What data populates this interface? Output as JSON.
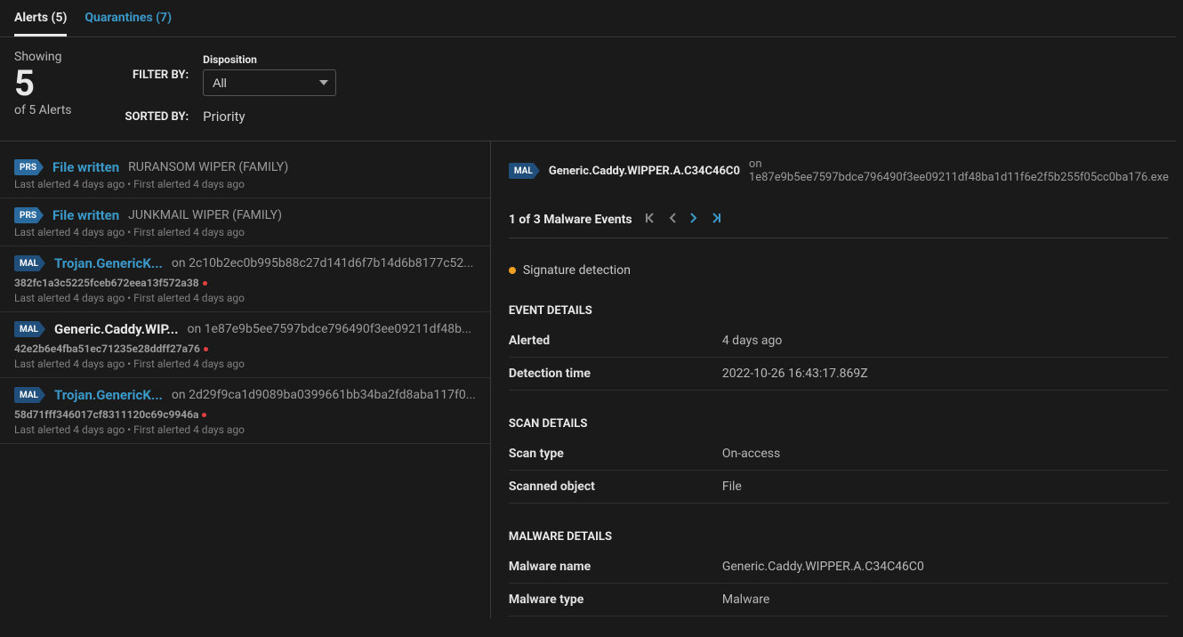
{
  "tabs": {
    "alerts": "Alerts (5)",
    "quarantines": "Quarantines (7)"
  },
  "showing": {
    "label": "Showing",
    "count": "5",
    "sub": "of 5 Alerts"
  },
  "filter": {
    "label": "FILTER BY:",
    "disposition_label": "Disposition",
    "disposition_value": "All"
  },
  "sort": {
    "label": "SORTED BY:",
    "value": "Priority"
  },
  "alerts": [
    {
      "badge": "PRS",
      "badge_class": "prs",
      "title": "File written",
      "title_class": "",
      "suffix": "RURANSOM WIPER (FAMILY)",
      "hash": "",
      "times": "Last alerted 4 days ago • First alerted 4 days ago"
    },
    {
      "badge": "PRS",
      "badge_class": "prs",
      "title": "File written",
      "title_class": "",
      "suffix": "JUNKMAIL WIPER (FAMILY)",
      "hash": "",
      "times": "Last alerted 4 days ago • First alerted 4 days ago"
    },
    {
      "badge": "MAL",
      "badge_class": "mal",
      "title": "Trojan.GenericK...",
      "title_class": "",
      "suffix": "on 2c10b2ec0b995b88c27d141d6f7b14d6b8177c52...",
      "hash": "382fc1a3c5225fceb672eea13f572a38",
      "times": "Last alerted 4 days ago • First alerted 4 days ago"
    },
    {
      "badge": "MAL",
      "badge_class": "mal",
      "title": "Generic.Caddy.WIP...",
      "title_class": "white",
      "suffix": "on 1e87e9b5ee7597bdce796490f3ee09211df48b...",
      "hash": "42e2b6e4fba51ec71235e28ddff27a76",
      "times": "Last alerted 4 days ago • First alerted 4 days ago"
    },
    {
      "badge": "MAL",
      "badge_class": "mal",
      "title": "Trojan.GenericK...",
      "title_class": "",
      "suffix": "on 2d29f9ca1d9089ba0399661bb34ba2fd8aba117f0...",
      "hash": "58d71fff346017cf8311120c69c9946a",
      "times": "Last alerted 4 days ago • First alerted 4 days ago"
    }
  ],
  "detail": {
    "badge": "MAL",
    "title": "Generic.Caddy.WIPPER.A.C34C46C0",
    "suffix": "on 1e87e9b5ee7597bdce796490f3ee09211df48ba1d11f6e2f5b255f05cc0ba176.exe",
    "pager_text": "1 of 3 Malware Events",
    "sig_label": "Signature detection",
    "sections": {
      "event": {
        "heading": "EVENT DETAILS",
        "rows": [
          {
            "k": "Alerted",
            "v": "4 days ago"
          },
          {
            "k": "Detection time",
            "v": "2022-10-26 16:43:17.869Z"
          }
        ]
      },
      "scan": {
        "heading": "SCAN DETAILS",
        "rows": [
          {
            "k": "Scan type",
            "v": "On-access"
          },
          {
            "k": "Scanned object",
            "v": "File"
          }
        ]
      },
      "malware": {
        "heading": "MALWARE DETAILS",
        "rows": [
          {
            "k": "Malware name",
            "v": "Generic.Caddy.WIPPER.A.C34C46C0"
          },
          {
            "k": "Malware type",
            "v": "Malware"
          }
        ]
      }
    }
  }
}
